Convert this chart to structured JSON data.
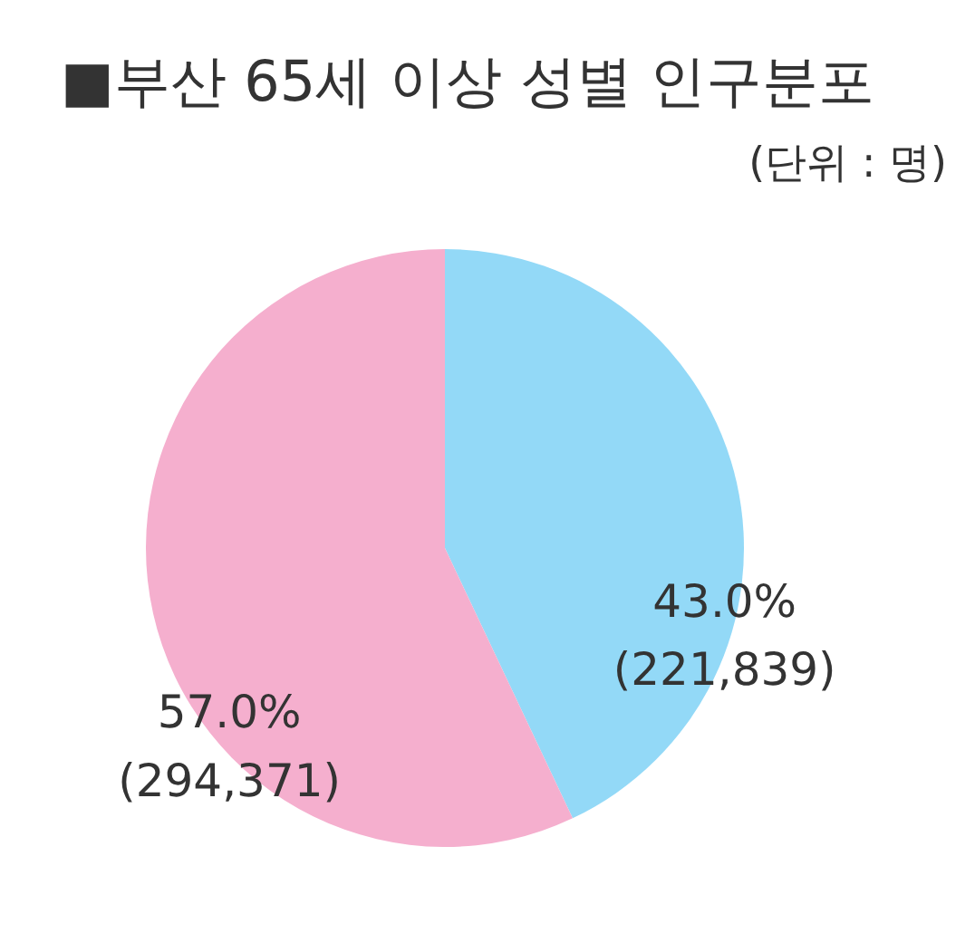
{
  "chart_data": {
    "type": "pie",
    "title": "■부산 65세 이상 성별 인구분포",
    "subtitle": "(단위 : 명)",
    "categories": [
      null,
      null
    ],
    "values": [
      221839,
      294371
    ],
    "colors": [
      "#93d9f7",
      "#f5afce"
    ],
    "value_labels": [
      "43.0%\n(221,839)",
      "57.0%\n(294,371)"
    ]
  }
}
